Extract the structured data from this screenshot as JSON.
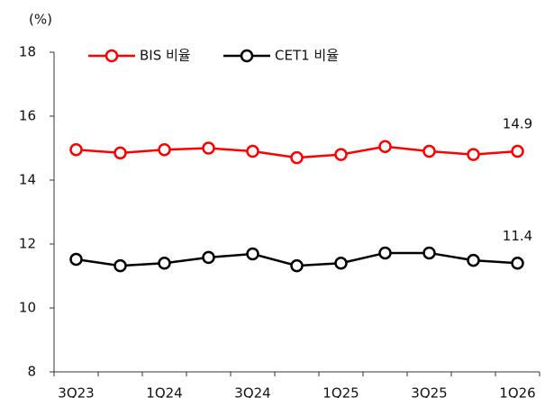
{
  "chart_data": {
    "type": "line",
    "y_label": "(%)",
    "categories": [
      "3Q23",
      null,
      "1Q24",
      null,
      "3Q24",
      null,
      "1Q25",
      null,
      "3Q25",
      null,
      "1Q26"
    ],
    "series": [
      {
        "name": "BIS 비율",
        "color": "#ff0000",
        "values": [
          14.95,
          14.85,
          14.95,
          15.0,
          14.9,
          14.7,
          14.8,
          15.05,
          14.9,
          14.8,
          14.9
        ],
        "value_labels": [
          null,
          null,
          null,
          null,
          null,
          null,
          null,
          null,
          null,
          null,
          "14.9"
        ]
      },
      {
        "name": "CET1 비율",
        "color": "#000000",
        "values": [
          11.52,
          11.32,
          11.4,
          11.58,
          11.69,
          11.32,
          11.4,
          11.72,
          11.72,
          11.49,
          11.4
        ],
        "value_labels": [
          null,
          null,
          null,
          null,
          null,
          null,
          null,
          null,
          null,
          null,
          "11.4"
        ]
      }
    ],
    "ylim": [
      8,
      18
    ],
    "yticks": [
      8,
      10,
      12,
      14,
      16,
      18
    ],
    "grid": false,
    "legend": "top"
  }
}
